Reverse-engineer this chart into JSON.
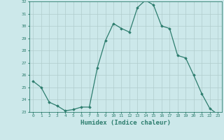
{
  "title": "",
  "xlabel": "Humidex (Indice chaleur)",
  "ylabel": "",
  "x_values": [
    0,
    1,
    2,
    3,
    4,
    5,
    6,
    7,
    8,
    9,
    10,
    11,
    12,
    13,
    14,
    15,
    16,
    17,
    18,
    19,
    20,
    21,
    22,
    23
  ],
  "y_values": [
    25.5,
    25.0,
    23.8,
    23.5,
    23.1,
    23.2,
    23.4,
    23.4,
    26.6,
    28.8,
    30.2,
    29.8,
    29.5,
    31.5,
    32.1,
    31.7,
    30.0,
    29.8,
    27.6,
    27.4,
    26.0,
    24.5,
    23.3,
    22.8
  ],
  "line_color": "#2d7d6e",
  "marker": "D",
  "marker_size": 1.8,
  "ylim": [
    23,
    32
  ],
  "yticks": [
    23,
    24,
    25,
    26,
    27,
    28,
    29,
    30,
    31,
    32
  ],
  "xlim": [
    -0.5,
    23.5
  ],
  "xticks": [
    0,
    1,
    2,
    3,
    4,
    5,
    6,
    7,
    8,
    9,
    10,
    11,
    12,
    13,
    14,
    15,
    16,
    17,
    18,
    19,
    20,
    21,
    22,
    23
  ],
  "bg_color": "#cce8ea",
  "grid_color": "#b0cccc",
  "axis_color": "#2d7d6e",
  "tick_label_color": "#2d7d6e",
  "xlabel_color": "#2d7d6e",
  "tick_fontsize": 4.5,
  "xlabel_fontsize": 6.5
}
